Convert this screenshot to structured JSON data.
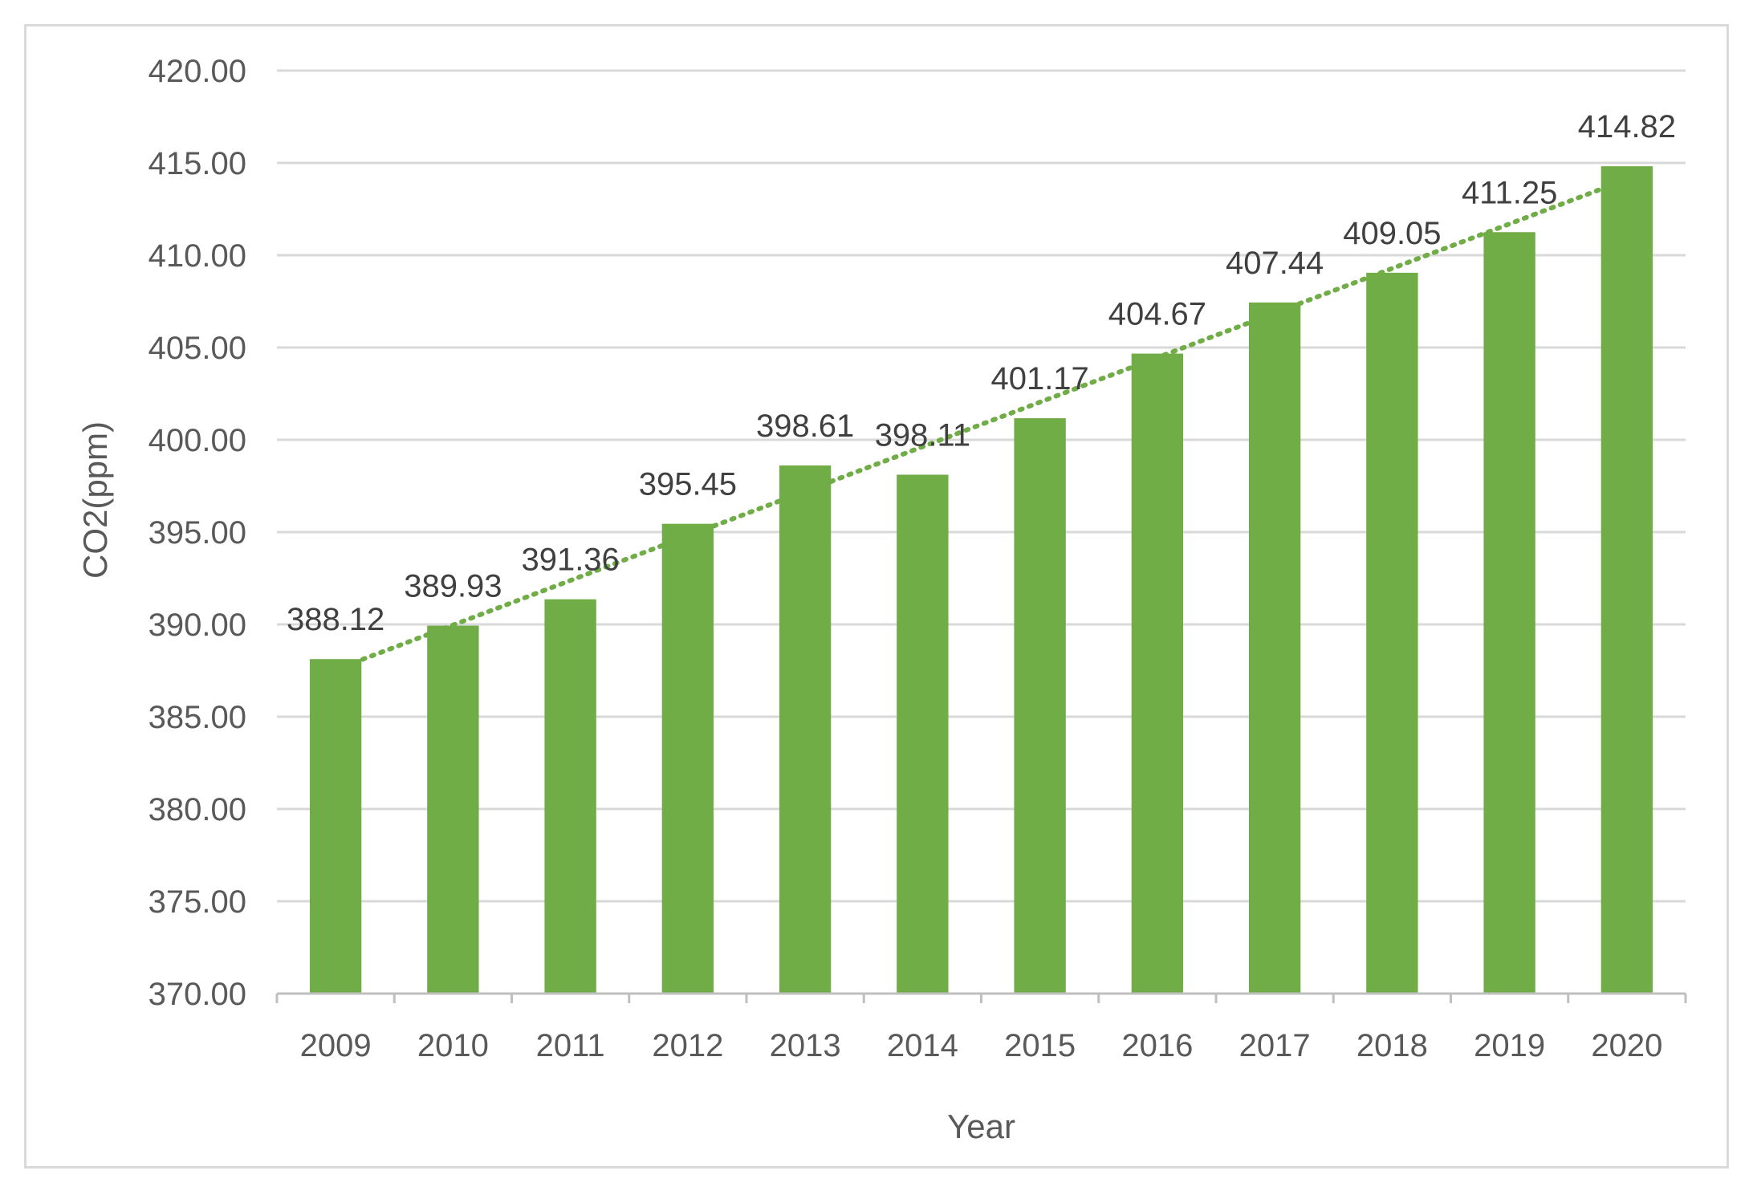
{
  "chart_data": {
    "type": "bar",
    "title": "",
    "xlabel": "Year",
    "ylabel": "CO2(ppm)",
    "categories": [
      "2009",
      "2010",
      "2011",
      "2012",
      "2013",
      "2014",
      "2015",
      "2016",
      "2017",
      "2018",
      "2019",
      "2020"
    ],
    "values": [
      388.12,
      389.93,
      391.36,
      395.45,
      398.61,
      398.11,
      401.17,
      404.67,
      407.44,
      409.05,
      411.25,
      414.82
    ],
    "value_labels": [
      "388.12",
      "389.93",
      "391.36",
      "395.45",
      "398.61",
      "398.11",
      "401.17",
      "404.67",
      "407.44",
      "409.05",
      "411.25",
      "414.82"
    ],
    "ylim": [
      370,
      420
    ],
    "yticks": [
      370,
      375,
      380,
      385,
      390,
      395,
      400,
      405,
      410,
      415,
      420
    ],
    "ytick_labels": [
      "370.00",
      "375.00",
      "380.00",
      "385.00",
      "390.00",
      "395.00",
      "400.00",
      "405.00",
      "410.00",
      "415.00",
      "420.00"
    ],
    "grid": true,
    "trendline": {
      "type": "linear",
      "style": "dotted"
    },
    "colors": {
      "bar": "#70ad47",
      "trendline": "#70ad47",
      "grid": "#d9d9d9",
      "axis": "#bfbfbf"
    }
  }
}
